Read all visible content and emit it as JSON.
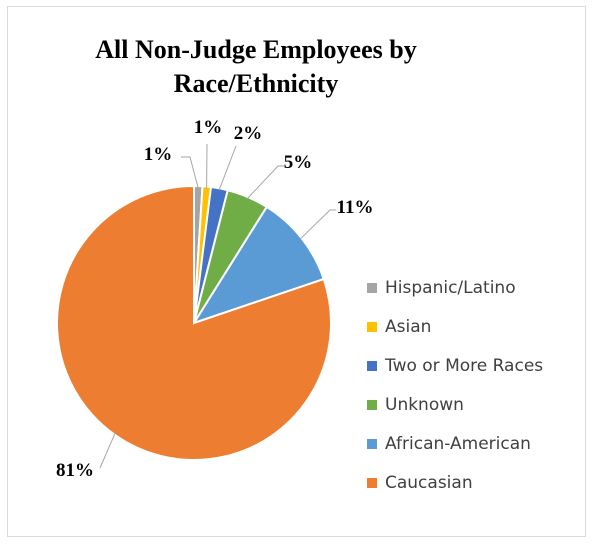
{
  "chart_data": {
    "type": "pie",
    "title": "All Non-Judge Employees by Race/Ethnicity",
    "title_lines": [
      "All Non-Judge Employees by",
      "Race/Ethnicity"
    ],
    "slices": [
      {
        "name": "Hispanic/Latino",
        "value": 1,
        "label": "1%",
        "color": "#a5a5a5"
      },
      {
        "name": "Asian",
        "value": 1,
        "label": "1%",
        "color": "#ffc000"
      },
      {
        "name": "Two or More Races",
        "value": 2,
        "label": "2%",
        "color": "#4472c4"
      },
      {
        "name": "Unknown",
        "value": 5,
        "label": "5%",
        "color": "#70ad47"
      },
      {
        "name": "African-American",
        "value": 11,
        "label": "11%",
        "color": "#5b9bd5"
      },
      {
        "name": "Caucasian",
        "value": 81,
        "label": "81%",
        "color": "#ed7d31"
      }
    ],
    "legend_position": "right",
    "start_angle_deg": 0,
    "direction": "clockwise"
  }
}
